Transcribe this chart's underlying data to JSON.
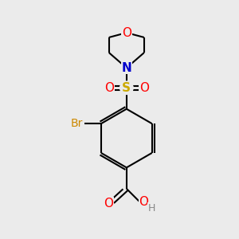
{
  "background_color": "#ebebeb",
  "line_color": "#000000",
  "bond_width": 1.5,
  "colors": {
    "O": "#ff0000",
    "N": "#0000cc",
    "S": "#ccaa00",
    "Br": "#cc8800",
    "C": "#000000",
    "H": "#888888"
  }
}
